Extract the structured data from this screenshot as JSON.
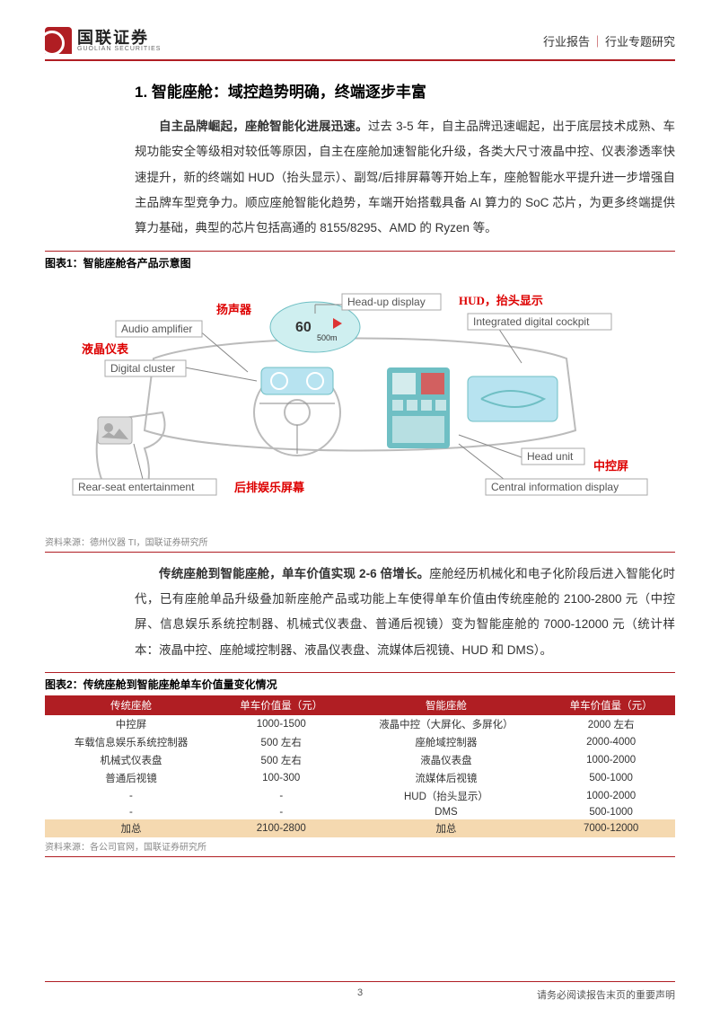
{
  "header": {
    "logo_cn": "国联证券",
    "logo_en": "GUOLIAN SECURITIES",
    "doc_type_left": "行业报告",
    "doc_type_right": "行业专题研究"
  },
  "section": {
    "number": "1.",
    "title": "智能座舱：域控趋势明确，终端逐步丰富"
  },
  "para1_lead": "自主品牌崛起，座舱智能化进展迅速。",
  "para1_body": "过去 3-5 年，自主品牌迅速崛起，出于底层技术成熟、车规功能安全等级相对较低等原因，自主在座舱加速智能化升级，各类大尺寸液晶中控、仪表渗透率快速提升，新的终端如 HUD（抬头显示）、副驾/后排屏幕等开始上车，座舱智能水平提升进一步增强自主品牌车型竞争力。顺应座舱智能化趋势，车端开始搭载具备 AI 算力的 SoC 芯片，为更多终端提供算力基础，典型的芯片包括高通的 8155/8295、AMD 的 Ryzen 等。",
  "fig1": {
    "title": "图表1：智能座舱各产品示意图",
    "source": "资料来源：德州仪器 TI，国联证券研究所",
    "labels": {
      "head_up_en": "Head-up display",
      "head_up_cn": "HUD，抬头显示",
      "audio_en": "Audio amplifier",
      "audio_cn": "扬声器",
      "cluster_en": "Digital cluster",
      "cluster_cn": "液晶仪表",
      "cockpit_en": "Integrated digital cockpit",
      "rear_en": "Rear-seat entertainment",
      "rear_cn": "后排娱乐屏幕",
      "head_unit_en": "Head unit",
      "cid_en": "Central information display",
      "cid_cn": "中控屏",
      "hud_speed": "60",
      "hud_dist": "500m"
    },
    "colors": {
      "accent": "#d00000",
      "outline": "#bbbbbb",
      "screen_teal": "#6fbfc4",
      "screen_blue": "#b7e3f0",
      "label_gray": "#555555"
    }
  },
  "para2_lead": "传统座舱到智能座舱，单车价值实现 2-6 倍增长。",
  "para2_body": "座舱经历机械化和电子化阶段后进入智能化时代，已有座舱单品升级叠加新座舱产品或功能上车使得单车价值由传统座舱的 2100-2800 元（中控屏、信息娱乐系统控制器、机械式仪表盘、普通后视镜）变为智能座舱的 7000-12000 元（统计样本：液晶中控、座舱域控制器、液晶仪表盘、流媒体后视镜、HUD 和 DMS）。",
  "fig2": {
    "title": "图表2：传统座舱到智能座舱单车价值量变化情况",
    "source": "资料来源：各公司官网，国联证券研究所",
    "columns": [
      "传统座舱",
      "单车价值量（元）",
      "智能座舱",
      "单车价值量（元）"
    ],
    "rows": [
      [
        "中控屏",
        "1000-1500",
        "液晶中控（大屏化、多屏化）",
        "2000 左右"
      ],
      [
        "车载信息娱乐系统控制器",
        "500 左右",
        "座舱域控制器",
        "2000-4000"
      ],
      [
        "机械式仪表盘",
        "500 左右",
        "液晶仪表盘",
        "1000-2000"
      ],
      [
        "普通后视镜",
        "100-300",
        "流媒体后视镜",
        "500-1000"
      ],
      [
        "-",
        "-",
        "HUD（抬头显示）",
        "1000-2000"
      ],
      [
        "-",
        "-",
        "DMS",
        "500-1000"
      ]
    ],
    "sum_row": [
      "加总",
      "2100-2800",
      "加总",
      "7000-12000"
    ],
    "header_bg": "#b01e23",
    "header_fg": "#ffffff",
    "sum_bg": "#f5d9b0"
  },
  "footer": {
    "page": "3",
    "notice": "请务必阅读报告末页的重要声明"
  }
}
